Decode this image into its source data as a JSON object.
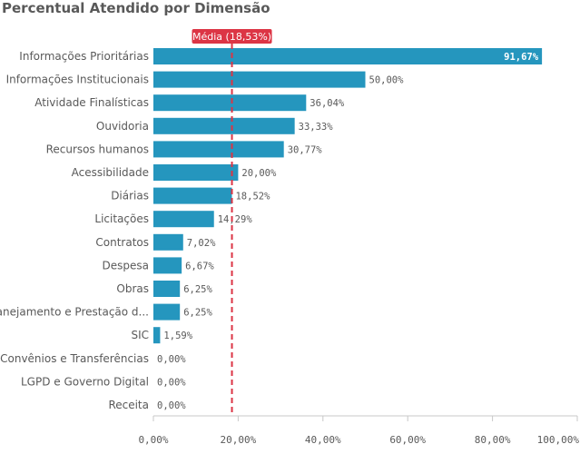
{
  "chart_data": {
    "type": "bar",
    "orientation": "horizontal",
    "title": "Percentual Atendido por Dimensão",
    "xlabel": "",
    "ylabel": "",
    "xlim": [
      0,
      100
    ],
    "ticks": [
      0,
      20,
      40,
      60,
      80,
      100
    ],
    "tick_labels": [
      "0,00%",
      "20,00%",
      "40,00%",
      "60,00%",
      "80,00%",
      "100,00%"
    ],
    "categories": [
      "Informações Prioritárias",
      "Informações Institucionais",
      "Atividade Finalísticas",
      "Ouvidoria",
      "Recursos humanos",
      "Acessibilidade",
      "Diárias",
      "Licitações",
      "Contratos",
      "Despesa",
      "Obras",
      "Planejamento e Prestação d...",
      "SIC",
      "Convênios e Transferências",
      "LGPD e Governo Digital",
      "Receita"
    ],
    "values": [
      91.67,
      50,
      36.04,
      33.33,
      30.77,
      20,
      18.52,
      14.29,
      7.02,
      6.67,
      6.25,
      6.25,
      1.59,
      0,
      0,
      0
    ],
    "value_labels": [
      "91,67%",
      "50,00%",
      "36,04%",
      "33,33%",
      "30,77%",
      "20,00%",
      "18,52%",
      "14,29%",
      "7,02%",
      "6,67%",
      "6,25%",
      "6,25%",
      "1,59%",
      "0,00%",
      "0,00%",
      "0,00%"
    ],
    "reference_line": {
      "label": "Média (18,53%)",
      "value": 18.53
    },
    "grid": false,
    "colors": {
      "bar": "#2596be",
      "reference": "#dc3545",
      "axis": "#c8c8c8",
      "text": "#595959"
    }
  }
}
